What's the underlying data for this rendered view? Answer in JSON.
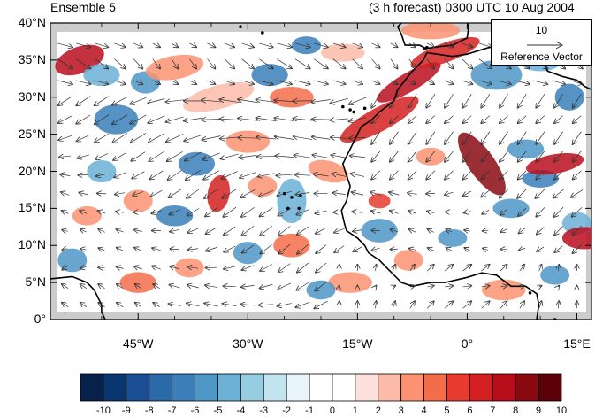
{
  "header": {
    "left_title": "Ensemble 5",
    "right_title": "(3 h forecast) 0300 UTC 10 Aug 2004"
  },
  "map": {
    "lat_labels": [
      "40°N",
      "35°N",
      "30°N",
      "25°N",
      "20°N",
      "15°N",
      "10°N",
      "5°N",
      "0°"
    ],
    "lon_labels": [
      "45°W",
      "30°W",
      "15°W",
      "0°",
      "15°E"
    ],
    "lon_range": [
      -57,
      17
    ],
    "lat_range": [
      0,
      40
    ],
    "missing_color": "#cccccc",
    "coast_color": "#000000",
    "vector_color": "#333333"
  },
  "reference_vector": {
    "magnitude": "10",
    "label": "Reference Vector"
  },
  "colorbar": {
    "labels": [
      "-10",
      "-9",
      "-8",
      "-7",
      "-6",
      "-5",
      "-4",
      "-3",
      "-2",
      "-1",
      "0",
      "1",
      "2",
      "3",
      "4",
      "5",
      "6",
      "7",
      "8",
      "9",
      "10"
    ],
    "colors": [
      "#08214a",
      "#0a3670",
      "#1a4f94",
      "#2a6aa8",
      "#3a7fba",
      "#4f97c7",
      "#6cb0d6",
      "#96cde0",
      "#c2e4ef",
      "#e8f5fa",
      "#ffffff",
      "#ffffff",
      "#fde0dc",
      "#fcbba8",
      "#fc9272",
      "#f46d4b",
      "#e63b2e",
      "#d42020",
      "#b80e1c",
      "#8a0a12",
      "#5a0006"
    ]
  }
}
